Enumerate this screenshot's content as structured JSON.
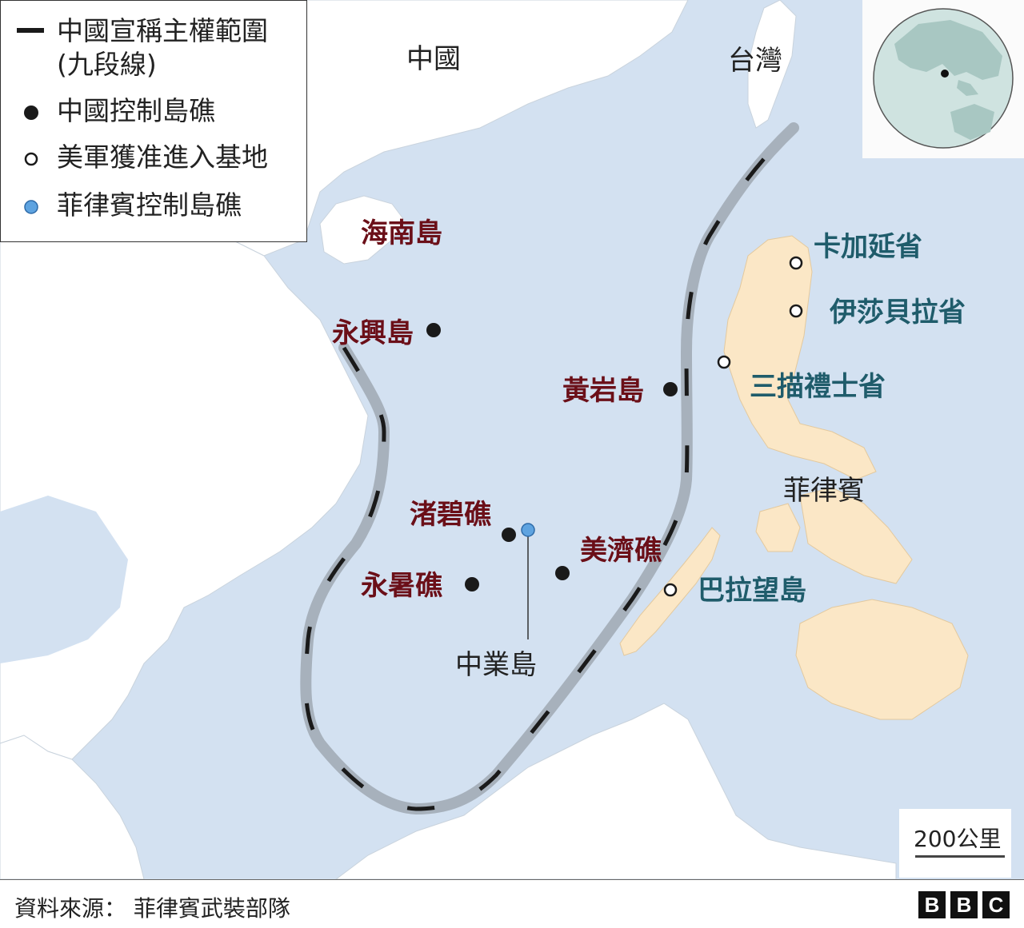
{
  "legend": {
    "claim_line": "中國宣稱主權範圍",
    "claim_line_sub": "(九段線)",
    "china_controlled": "中國控制島礁",
    "us_bases": "美軍獲准進入基地",
    "philippines_controlled": "菲律賓控制島礁"
  },
  "countries": {
    "china": "中國",
    "taiwan": "台灣",
    "philippines": "菲律賓"
  },
  "china_islands": {
    "hainan": "海南島",
    "woody": "永興島",
    "scarborough": "黃岩島",
    "subi": "渚碧礁",
    "mischief": "美濟礁",
    "fiery_cross": "永暑礁"
  },
  "philippine_features": {
    "thitu": "中業島"
  },
  "us_bases": {
    "cagayan": "卡加延省",
    "isabela": "伊莎貝拉省",
    "zambales": "三描禮士省",
    "palawan": "巴拉望島"
  },
  "scale": "200公里",
  "source": "資料來源： 菲律賓武裝部隊",
  "brand": [
    "B",
    "B",
    "C"
  ],
  "colors": {
    "sea": "#d3e1f1",
    "land": "#ffffff",
    "philippines_land": "#fbe7c6",
    "china_label": "#6b0f18",
    "base_label": "#1f5c6b",
    "claim_line": "#a7b1bc"
  }
}
